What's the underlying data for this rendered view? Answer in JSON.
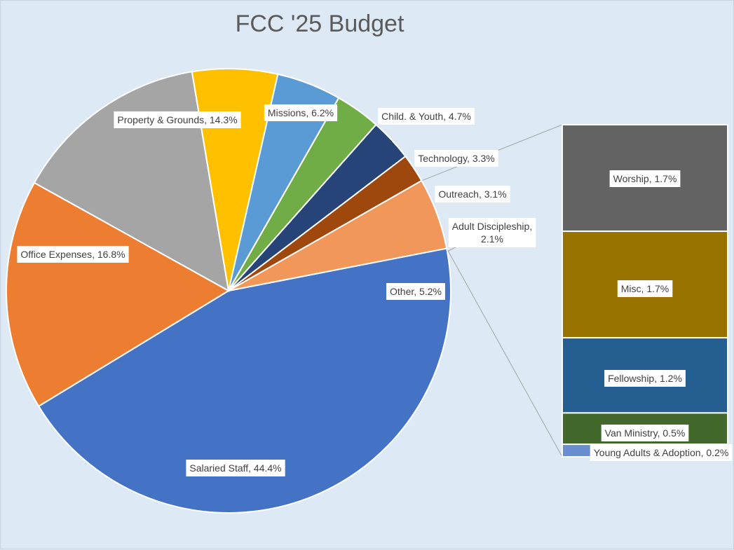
{
  "chart_data": {
    "type": "pie",
    "title": "FCC '25 Budget",
    "subtype": "bar-of-pie",
    "slices": [
      {
        "label": "Salaried Staff",
        "value": 44.4,
        "display": "Salaried Staff, 44.4%",
        "color": "#4472c4"
      },
      {
        "label": "Office Expenses",
        "value": 16.8,
        "display": "Office Expenses, 16.8%",
        "color": "#ed7d31"
      },
      {
        "label": "Property & Grounds",
        "value": 14.3,
        "display": "Property & Grounds, 14.3%",
        "color": "#a5a5a5"
      },
      {
        "label": "Missions",
        "value": 6.2,
        "display": "Missions, 6.2%",
        "color": "#ffc000"
      },
      {
        "label": "Child. & Youth",
        "value": 4.7,
        "display": "Child. & Youth, 4.7%",
        "color": "#5b9bd5"
      },
      {
        "label": "Technology",
        "value": 3.3,
        "display": "Technology, 3.3%",
        "color": "#70ad47"
      },
      {
        "label": "Outreach",
        "value": 3.1,
        "display": "Outreach, 3.1%",
        "color": "#264478"
      },
      {
        "label": "Adult Discipleship",
        "value": 2.1,
        "display_lines": [
          "Adult Discipleship,",
          "2.1%"
        ],
        "color": "#9e480e"
      },
      {
        "label": "Other",
        "value": 5.2,
        "display": "Other, 5.2%",
        "color": "#f1975a"
      }
    ],
    "breakdown_of": "Other",
    "breakdown": [
      {
        "label": "Worship",
        "value": 1.7,
        "display": "Worship, 1.7%",
        "color": "#636363"
      },
      {
        "label": "Misc",
        "value": 1.7,
        "display": "Misc, 1.7%",
        "color": "#997300"
      },
      {
        "label": "Fellowship",
        "value": 1.2,
        "display": "Fellowship, 1.2%",
        "color": "#255e91"
      },
      {
        "label": "Van Ministry",
        "value": 0.5,
        "display": "Van Ministry, 0.5%",
        "color": "#43682b"
      },
      {
        "label": "Young Adults & Adoption",
        "value": 0.2,
        "display": "Young Adults & Adoption, 0.2%",
        "color": "#698ed0"
      }
    ]
  }
}
